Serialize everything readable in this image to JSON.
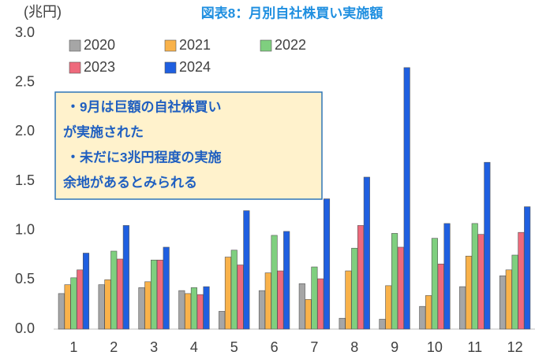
{
  "chart_data": {
    "type": "bar",
    "title": "図表8：月別自社株買い実施額",
    "y_unit": "(兆円)",
    "categories": [
      "1",
      "2",
      "3",
      "4",
      "5",
      "6",
      "7",
      "8",
      "9",
      "10",
      "11",
      "12"
    ],
    "series": [
      {
        "name": "2020",
        "color": "#a6a6a6",
        "values": [
          0.36,
          0.45,
          0.42,
          0.39,
          0.18,
          0.39,
          0.46,
          0.11,
          0.1,
          0.23,
          0.43,
          0.54
        ]
      },
      {
        "name": "2021",
        "color": "#f9b24a",
        "values": [
          0.45,
          0.5,
          0.48,
          0.36,
          0.73,
          0.57,
          0.3,
          0.59,
          0.44,
          0.34,
          0.74,
          0.6
        ]
      },
      {
        "name": "2022",
        "color": "#7fcf7f",
        "values": [
          0.52,
          0.79,
          0.7,
          0.42,
          0.8,
          0.95,
          0.63,
          0.82,
          0.97,
          0.92,
          1.07,
          0.75
        ]
      },
      {
        "name": "2023",
        "color": "#ee6a7c",
        "values": [
          0.6,
          0.71,
          0.7,
          0.35,
          0.65,
          0.59,
          0.51,
          1.05,
          0.83,
          0.66,
          0.96,
          0.98
        ]
      },
      {
        "name": "2024",
        "color": "#1f5fe0",
        "values": [
          0.77,
          1.05,
          0.83,
          0.43,
          1.2,
          0.99,
          1.32,
          1.54,
          2.65,
          1.07,
          1.69,
          1.24
        ]
      }
    ],
    "ylim": [
      0,
      3.0
    ],
    "yticks": [
      {
        "value": 0,
        "label": "0.0"
      },
      0.5,
      {
        "value": 1,
        "label": "1.0"
      },
      1.5,
      {
        "value": 2,
        "label": "2.0"
      },
      2.5,
      {
        "value": 3,
        "label": "3.0"
      }
    ],
    "grid": false,
    "legend": "top-left",
    "annotation": [
      "・9月は巨額の自社株買い",
      "が実施された",
      "・未だに3兆円程度の実施",
      "余地があるとみられる"
    ]
  }
}
